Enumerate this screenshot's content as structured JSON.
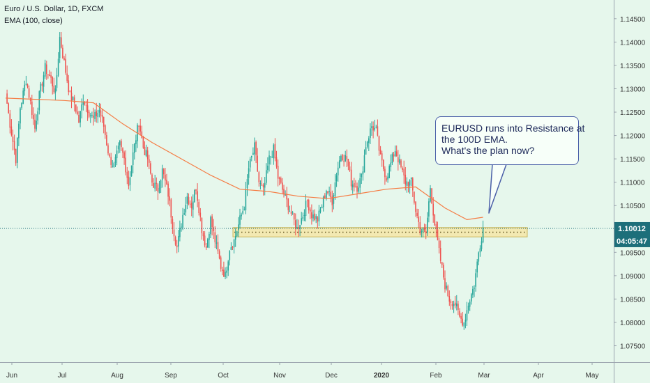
{
  "header": {
    "symbol_title": "Euro / U.S. Dollar, 1D, FXCM",
    "indicator_label": "EMA (100, close)"
  },
  "annotation": {
    "lines": [
      "EURUSD runs into Resistance at",
      "the 100D EMA.",
      "What's the plan now?"
    ]
  },
  "price_badge": {
    "price": "1.10012",
    "countdown": "04:05:47"
  },
  "colors": {
    "background": "#e6f7ec",
    "up_candle": "#26a69a",
    "down_candle": "#ef5350",
    "ema": "#f57c44",
    "zone_fill": "#f5e6a8",
    "zone_border": "#c9b65a",
    "price_line": "#1d6f7a",
    "price_badge": "#1d6f7a"
  },
  "chart_data": {
    "type": "candlestick",
    "title": "Euro / U.S. Dollar, 1D, FXCM",
    "indicator": "EMA (100, close)",
    "y_ticks": [
      "1.14500",
      "1.14000",
      "1.13500",
      "1.13000",
      "1.12500",
      "1.12000",
      "1.11500",
      "1.11000",
      "1.10500",
      "1.10000",
      "1.09500",
      "1.09000",
      "1.08500",
      "1.08000",
      "1.07500"
    ],
    "ylim": [
      1.0715,
      1.149
    ],
    "x_ticks": [
      "Jun",
      "Jul",
      "Aug",
      "Sep",
      "Oct",
      "Nov",
      "Dec",
      "2020",
      "Feb",
      "Mar",
      "Apr",
      "May"
    ],
    "last_price": 1.10012,
    "support_zone": [
      1.0983,
      1.1003
    ],
    "close_path": [
      [
        0,
        1.129
      ],
      [
        3,
        1.1225
      ],
      [
        7,
        1.115
      ],
      [
        10,
        1.126
      ],
      [
        14,
        1.132
      ],
      [
        17,
        1.127
      ],
      [
        20,
        1.1215
      ],
      [
        23,
        1.1285
      ],
      [
        27,
        1.1345
      ],
      [
        31,
        1.132
      ],
      [
        34,
        1.129
      ],
      [
        37,
        1.141
      ],
      [
        40,
        1.1355
      ],
      [
        44,
        1.1285
      ],
      [
        47,
        1.127
      ],
      [
        50,
        1.123
      ],
      [
        53,
        1.128
      ],
      [
        57,
        1.125
      ],
      [
        60,
        1.1235
      ],
      [
        64,
        1.1255
      ],
      [
        67,
        1.122
      ],
      [
        71,
        1.115
      ],
      [
        74,
        1.1135
      ],
      [
        78,
        1.118
      ],
      [
        81,
        1.115
      ],
      [
        84,
        1.1095
      ],
      [
        87,
        1.116
      ],
      [
        91,
        1.123
      ],
      [
        94,
        1.1175
      ],
      [
        97,
        1.115
      ],
      [
        100,
        1.11
      ],
      [
        104,
        1.1085
      ],
      [
        107,
        1.1125
      ],
      [
        111,
        1.1075
      ],
      [
        114,
        1.101
      ],
      [
        117,
        1.096
      ],
      [
        121,
        1.103
      ],
      [
        124,
        1.107
      ],
      [
        127,
        1.105
      ],
      [
        130,
        1.109
      ],
      [
        134,
        1.1
      ],
      [
        137,
        1.096
      ],
      [
        140,
        1.102
      ],
      [
        143,
        1.0975
      ],
      [
        147,
        1.092
      ],
      [
        150,
        1.09
      ],
      [
        153,
        1.096
      ],
      [
        156,
        1.0975
      ],
      [
        160,
        1.102
      ],
      [
        163,
        1.105
      ],
      [
        166,
        1.113
      ],
      [
        170,
        1.1175
      ],
      [
        173,
        1.11
      ],
      [
        176,
        1.108
      ],
      [
        180,
        1.115
      ],
      [
        183,
        1.117
      ],
      [
        186,
        1.111
      ],
      [
        190,
        1.1075
      ],
      [
        193,
        1.105
      ],
      [
        196,
        1.1025
      ],
      [
        199,
        1.1
      ],
      [
        203,
        1.103
      ],
      [
        206,
        1.106
      ],
      [
        209,
        1.103
      ],
      [
        213,
        1.102
      ],
      [
        216,
        1.105
      ],
      [
        219,
        1.1085
      ],
      [
        223,
        1.106
      ],
      [
        226,
        1.112
      ],
      [
        229,
        1.116
      ],
      [
        233,
        1.115
      ],
      [
        236,
        1.11
      ],
      [
        240,
        1.109
      ],
      [
        243,
        1.111
      ],
      [
        246,
        1.118
      ],
      [
        250,
        1.122
      ],
      [
        253,
        1.121
      ],
      [
        256,
        1.115
      ],
      [
        260,
        1.111
      ],
      [
        263,
        1.114
      ],
      [
        266,
        1.117
      ],
      [
        270,
        1.113
      ],
      [
        273,
        1.11
      ],
      [
        277,
        1.11
      ],
      [
        280,
        1.104
      ],
      [
        283,
        1.1
      ],
      [
        287,
        1.099
      ],
      [
        290,
        1.109
      ],
      [
        293,
        1.101
      ],
      [
        296,
        1.095
      ],
      [
        300,
        1.088
      ],
      [
        303,
        1.085
      ],
      [
        307,
        1.084
      ],
      [
        310,
        1.081
      ],
      [
        313,
        1.08
      ],
      [
        316,
        1.084
      ],
      [
        320,
        1.088
      ],
      [
        323,
        1.095
      ],
      [
        326,
        1.1002
      ]
    ],
    "ema_100_path": [
      [
        0,
        1.128
      ],
      [
        40,
        1.1275
      ],
      [
        60,
        1.127
      ],
      [
        80,
        1.1225
      ],
      [
        100,
        1.1185
      ],
      [
        120,
        1.115
      ],
      [
        140,
        1.1115
      ],
      [
        160,
        1.1085
      ],
      [
        180,
        1.108
      ],
      [
        200,
        1.107
      ],
      [
        220,
        1.1065
      ],
      [
        240,
        1.1075
      ],
      [
        260,
        1.1085
      ],
      [
        280,
        1.109
      ],
      [
        300,
        1.1045
      ],
      [
        315,
        1.102
      ],
      [
        326,
        1.1025
      ]
    ]
  }
}
